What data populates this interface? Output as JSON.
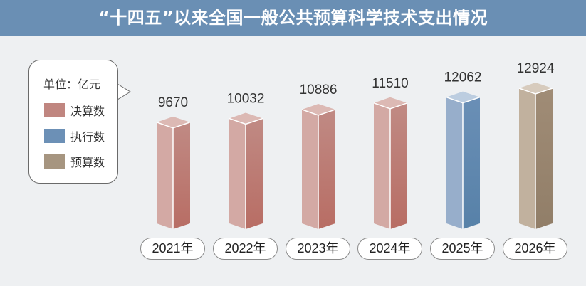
{
  "title": "“十四五”以来全国一般公共预算科学技术支出情况",
  "chart_data": {
    "type": "bar",
    "title": "“十四五”以来全国一般公共预算科学技术支出情况",
    "unit_label": "单位：亿元",
    "categories": [
      "2021年",
      "2022年",
      "2023年",
      "2024年",
      "2025年",
      "2026年"
    ],
    "values": [
      9670,
      10032,
      10886,
      11510,
      12062,
      12924
    ],
    "value_labels": [
      "9670",
      "10032",
      "10886",
      "11510",
      "12062",
      "12924"
    ],
    "series_type": [
      "决算数",
      "决算数",
      "决算数",
      "决算数",
      "执行数",
      "预算数"
    ],
    "legend": {
      "placement": "left",
      "items": [
        {
          "name": "决算数",
          "color": "#c08680"
        },
        {
          "name": "执行数",
          "color": "#6c90b6"
        },
        {
          "name": "预算数",
          "color": "#a69580"
        }
      ]
    },
    "bar_style": "3d-column",
    "grid": false
  },
  "colors": {
    "header": "#6a8fb4",
    "background": "#eef0f2",
    "决算数": {
      "front": "#d3a9a4",
      "side_top": "#c08a84",
      "side_bottom": "#b86d64",
      "top": "#dcb9b4"
    },
    "执行数": {
      "front": "#97aecb",
      "side_top": "#6a8fb6",
      "side_bottom": "#5781a8",
      "top": "#bccde0"
    },
    "预算数": {
      "front": "#c1b19e",
      "side_top": "#a08c76",
      "side_bottom": "#917e68",
      "top": "#d7cbbd"
    }
  }
}
